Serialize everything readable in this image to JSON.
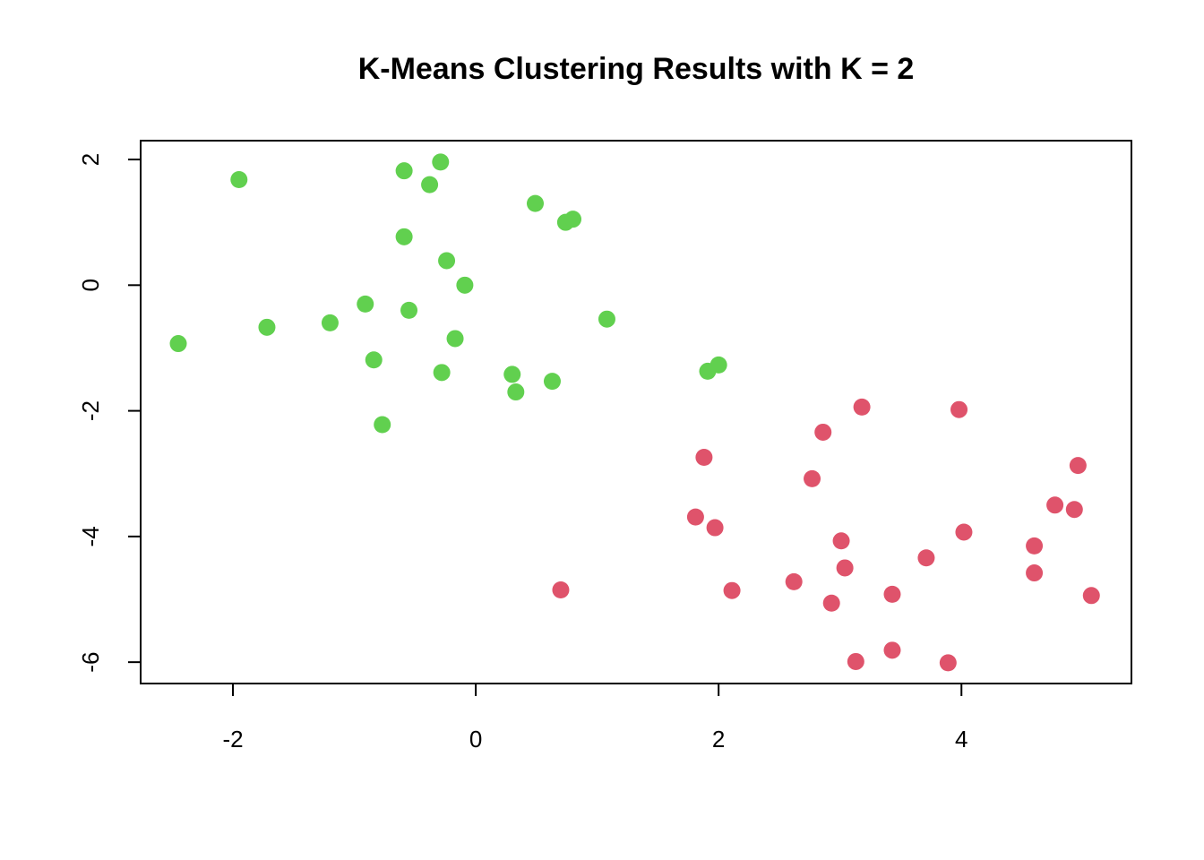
{
  "chart_data": {
    "type": "scatter",
    "title": "K-Means Clustering Results with K = 2",
    "xlabel": "",
    "ylabel": "",
    "xlim": [
      -2.76,
      5.4
    ],
    "ylim": [
      -6.34,
      2.3
    ],
    "x_ticks": [
      -2,
      0,
      2,
      4
    ],
    "y_ticks": [
      -6,
      -4,
      -2,
      0,
      2
    ],
    "grid": false,
    "legend": "none",
    "series": [
      {
        "color": "#61D04F",
        "points": [
          [
            -1.95,
            1.68
          ],
          [
            -0.59,
            1.82
          ],
          [
            -0.29,
            1.96
          ],
          [
            -0.38,
            1.6
          ],
          [
            0.49,
            1.3
          ],
          [
            0.74,
            1.0
          ],
          [
            0.8,
            1.05
          ],
          [
            -0.59,
            0.77
          ],
          [
            -0.24,
            0.39
          ],
          [
            -0.09,
            0.0
          ],
          [
            -0.91,
            -0.3
          ],
          [
            -0.55,
            -0.4
          ],
          [
            -1.2,
            -0.6
          ],
          [
            -1.72,
            -0.67
          ],
          [
            -2.45,
            -0.93
          ],
          [
            -0.17,
            -0.85
          ],
          [
            1.08,
            -0.54
          ],
          [
            -0.84,
            -1.19
          ],
          [
            -0.28,
            -1.39
          ],
          [
            0.3,
            -1.42
          ],
          [
            0.33,
            -1.7
          ],
          [
            0.63,
            -1.53
          ],
          [
            -0.77,
            -2.22
          ],
          [
            1.91,
            -1.37
          ],
          [
            2.0,
            -1.27
          ]
        ]
      },
      {
        "color": "#DF536B",
        "points": [
          [
            3.18,
            -1.94
          ],
          [
            3.98,
            -1.98
          ],
          [
            2.86,
            -2.34
          ],
          [
            1.88,
            -2.74
          ],
          [
            2.77,
            -3.08
          ],
          [
            4.96,
            -2.87
          ],
          [
            4.77,
            -3.5
          ],
          [
            4.93,
            -3.57
          ],
          [
            1.81,
            -3.69
          ],
          [
            1.97,
            -3.86
          ],
          [
            4.02,
            -3.93
          ],
          [
            3.01,
            -4.07
          ],
          [
            4.6,
            -4.15
          ],
          [
            3.71,
            -4.34
          ],
          [
            3.04,
            -4.5
          ],
          [
            4.6,
            -4.58
          ],
          [
            0.7,
            -4.85
          ],
          [
            2.11,
            -4.86
          ],
          [
            2.62,
            -4.72
          ],
          [
            3.43,
            -4.92
          ],
          [
            5.07,
            -4.94
          ],
          [
            2.93,
            -5.06
          ],
          [
            3.13,
            -5.99
          ],
          [
            3.43,
            -5.81
          ],
          [
            3.89,
            -6.01
          ]
        ]
      }
    ]
  }
}
